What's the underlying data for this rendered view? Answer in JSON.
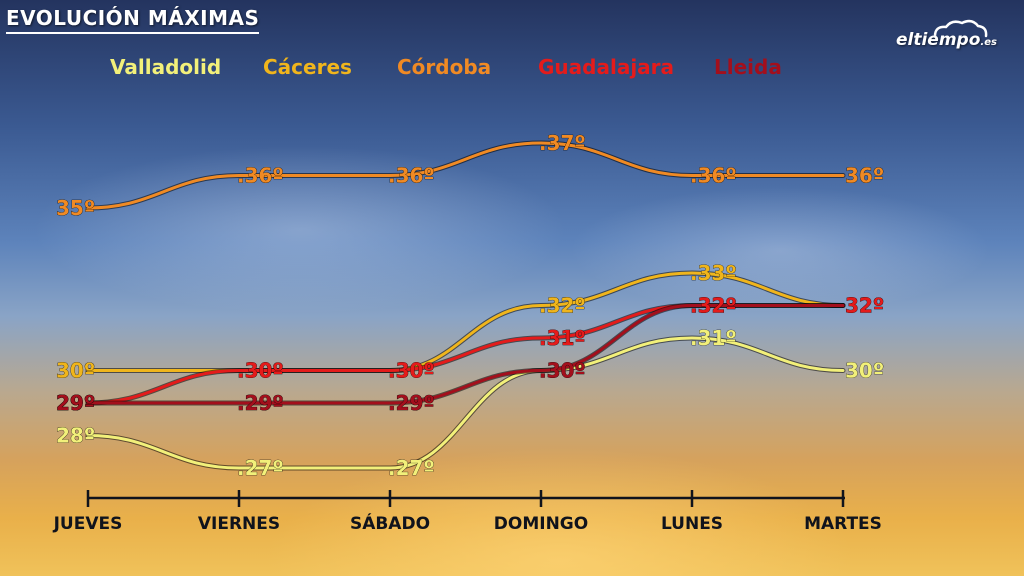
{
  "header": {
    "title": "EVOLUCIÓN MÁXIMAS",
    "logo_main": "eltiempo",
    "logo_tld": ".es",
    "logo_icon": "cloud-icon"
  },
  "chart_data": {
    "type": "line",
    "title": "EVOLUCIÓN MÁXIMAS",
    "xlabel": "",
    "ylabel": "",
    "categories": [
      "JUEVES",
      "VIERNES",
      "SÁBADO",
      "DOMINGO",
      "LUNES",
      "MARTES"
    ],
    "ylim": [
      26,
      38
    ],
    "unit_suffix": "º",
    "grid": false,
    "legend_position": "top",
    "series": [
      {
        "name": "Valladolid",
        "color": "#f2f07a",
        "values": [
          28,
          27,
          27,
          30,
          31,
          30
        ]
      },
      {
        "name": "Cáceres",
        "color": "#f0b51c",
        "values": [
          30,
          30,
          30,
          32,
          33,
          32
        ]
      },
      {
        "name": "Córdoba",
        "color": "#f08a24",
        "values": [
          35,
          36,
          36,
          37,
          36,
          36
        ]
      },
      {
        "name": "Guadalajara",
        "color": "#e41b1b",
        "values": [
          29,
          30,
          30,
          31,
          32,
          32
        ]
      },
      {
        "name": "Lleida",
        "color": "#a30f1c",
        "values": [
          29,
          29,
          29,
          30,
          32,
          32
        ]
      }
    ],
    "visible_value_labels": [
      [
        true,
        true,
        true,
        false,
        true,
        true
      ],
      [
        true,
        false,
        false,
        true,
        true,
        false
      ],
      [
        true,
        true,
        true,
        true,
        true,
        true
      ],
      [
        true,
        true,
        true,
        true,
        true,
        true
      ],
      [
        true,
        true,
        true,
        true,
        false,
        false
      ]
    ]
  }
}
